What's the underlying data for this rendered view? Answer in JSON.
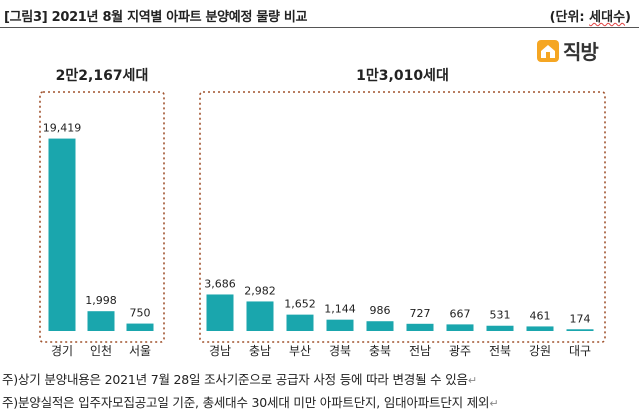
{
  "header": {
    "title": "[그림3] 2021년 8월 지역별 아파트 분양예정 물량 비교",
    "unit_prefix": "(단위: ",
    "unit_word": "세대수",
    "unit_suffix": ")"
  },
  "logo": {
    "text": "직방",
    "icon": "house-logo-icon"
  },
  "chart_data": {
    "type": "bar",
    "title": "[그림3] 2021년 8월 지역별 아파트 분양예정 물량 비교",
    "unit": "세대수",
    "ylim": [
      0,
      22000
    ],
    "grid": false,
    "color": "#1aa6ad",
    "groups": [
      {
        "label": "2만2,167세대",
        "categories": [
          "경기",
          "인천",
          "서울"
        ],
        "values": [
          19419,
          1998,
          750
        ],
        "value_labels": [
          "19,419",
          "1,998",
          "750"
        ]
      },
      {
        "label": "1만3,010세대",
        "categories": [
          "경남",
          "충남",
          "부산",
          "경북",
          "충북",
          "전남",
          "광주",
          "전북",
          "강원",
          "대구"
        ],
        "values": [
          3686,
          2982,
          1652,
          1144,
          986,
          727,
          667,
          531,
          461,
          174
        ],
        "value_labels": [
          "3,686",
          "2,982",
          "1,652",
          "1,144",
          "986",
          "727",
          "667",
          "531",
          "461",
          "174"
        ]
      }
    ]
  },
  "footnotes": [
    {
      "text": "주)상기 분양내용은 2021년 7월 28일 조사기준으로 공급자 사정 등에 따라 변경될 수 있음",
      "mark": "↵"
    },
    {
      "text": "주)분양실적은 입주자모집공고일 기준, 총세대수 30세대 미만 아파트단지, 임대아파트단지 제외",
      "mark": "↵"
    }
  ]
}
